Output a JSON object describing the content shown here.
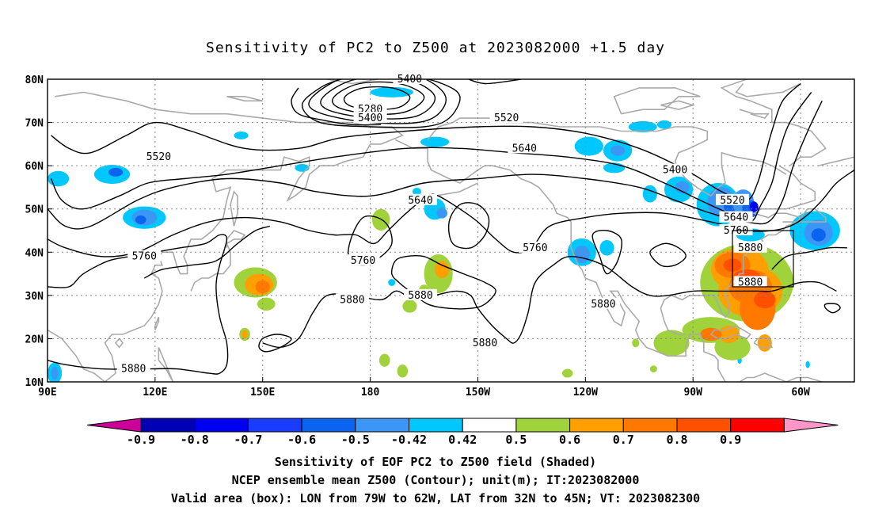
{
  "title": "Sensitivity of PC2 to Z500 at 2023082000 +1.5 day",
  "map": {
    "lon_labels": [
      "90E",
      "120E",
      "150E",
      "180",
      "150W",
      "120W",
      "90W",
      "60W"
    ],
    "lat_labels": [
      "80N",
      "70N",
      "60N",
      "50N",
      "40N",
      "30N",
      "20N",
      "10N"
    ],
    "lon_range": [
      90,
      315
    ],
    "lat_range": [
      10,
      80
    ],
    "gridlines": "dotted",
    "valid_box": {
      "lon": [
        281,
        298
      ],
      "lat": [
        32,
        45
      ]
    }
  },
  "contours": {
    "unit": "m",
    "labels": [
      {
        "text": "5400",
        "lon": 191,
        "lat": 80
      },
      {
        "text": "5280",
        "lon": 180,
        "lat": 73
      },
      {
        "text": "5400",
        "lon": 180,
        "lat": 71
      },
      {
        "text": "5520",
        "lon": 218,
        "lat": 71
      },
      {
        "text": "5520",
        "lon": 121,
        "lat": 62
      },
      {
        "text": "5640",
        "lon": 223,
        "lat": 64
      },
      {
        "text": "5400",
        "lon": 265,
        "lat": 59
      },
      {
        "text": "5520",
        "lon": 281,
        "lat": 52
      },
      {
        "text": "5640",
        "lon": 282,
        "lat": 48
      },
      {
        "text": "5760",
        "lon": 282,
        "lat": 45
      },
      {
        "text": "5640",
        "lon": 194,
        "lat": 52
      },
      {
        "text": "5760",
        "lon": 178,
        "lat": 38
      },
      {
        "text": "5760",
        "lon": 226,
        "lat": 41
      },
      {
        "text": "5760",
        "lon": 117,
        "lat": 39
      },
      {
        "text": "5880",
        "lon": 286,
        "lat": 41
      },
      {
        "text": "5880",
        "lon": 286,
        "lat": 33
      },
      {
        "text": "5880",
        "lon": 175,
        "lat": 29
      },
      {
        "text": "5880",
        "lon": 194,
        "lat": 30
      },
      {
        "text": "5880",
        "lon": 245,
        "lat": 28
      },
      {
        "text": "5880",
        "lon": 212,
        "lat": 19
      },
      {
        "text": "5880",
        "lon": 114,
        "lat": 13
      }
    ]
  },
  "colorbar": {
    "labels": [
      "-0.9",
      "-0.8",
      "-0.7",
      "-0.6",
      "-0.5",
      "-0.42",
      "0.42",
      "0.5",
      "0.6",
      "0.7",
      "0.8",
      "0.9"
    ],
    "colors": [
      "#cc0099",
      "#0000b4",
      "#0000f0",
      "#1a3cff",
      "#0a64f0",
      "#3c96f5",
      "#00c8ff",
      "#ffffff",
      "#a0d23c",
      "#ffa000",
      "#ff7800",
      "#ff5000",
      "#ff0000",
      "#ff96c8"
    ]
  },
  "shading_colors": {
    "light_blue": "#00c8ff",
    "mid_blue": "#3c96f5",
    "blue": "#0a64f0",
    "dark_blue": "#0000f0",
    "green": "#a0d23c",
    "orange": "#ffa000",
    "dark_orange": "#ff7800",
    "red_orange": "#ff5000"
  },
  "captions": [
    "Sensitivity of EOF PC2 to Z500 field (Shaded)",
    "NCEP ensemble mean Z500 (Contour); unit(m); IT:2023082000",
    "Valid area (box): LON from 79W to 62W, LAT from 32N to 45N; VT: 2023082300"
  ]
}
